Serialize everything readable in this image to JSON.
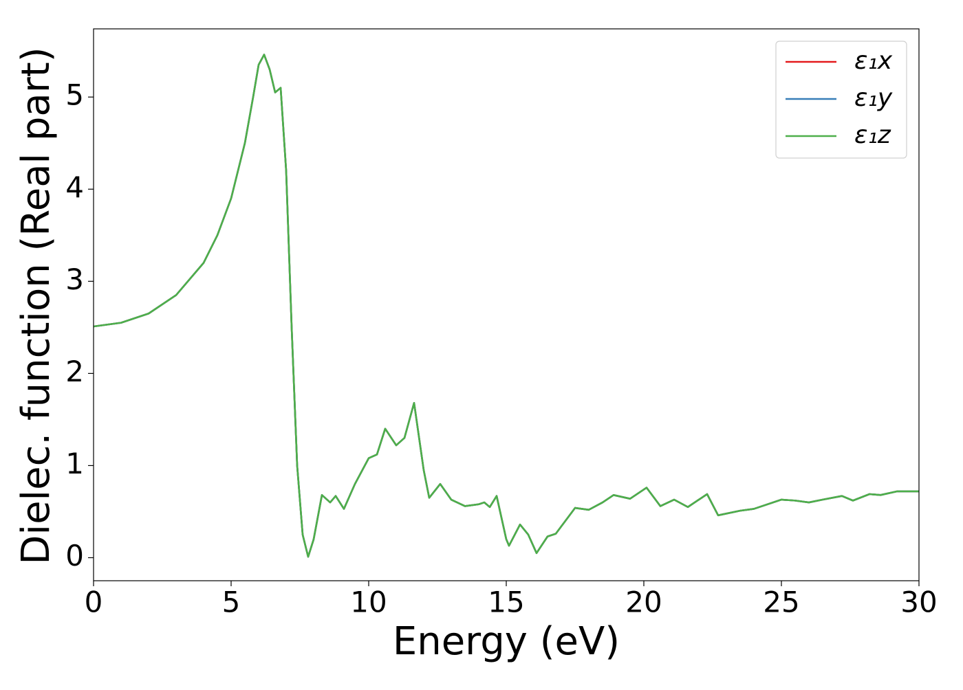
{
  "chart_data": {
    "type": "line",
    "x_label": "Energy (eV)",
    "y_label": "Dielec. function (Real part)",
    "x": [
      0,
      1,
      2,
      3,
      4,
      4.5,
      5,
      5.5,
      5.8,
      6.0,
      6.2,
      6.4,
      6.6,
      6.8,
      7.0,
      7.2,
      7.4,
      7.6,
      7.8,
      8.0,
      8.3,
      8.6,
      8.8,
      9.1,
      9.5,
      10.0,
      10.3,
      10.6,
      11.0,
      11.3,
      11.65,
      12.0,
      12.2,
      12.6,
      13.0,
      13.5,
      14.0,
      14.2,
      14.4,
      14.65,
      15.0,
      15.1,
      15.5,
      15.8,
      16.1,
      16.5,
      16.8,
      17.0,
      17.5,
      18.0,
      18.5,
      18.9,
      19.5,
      20.1,
      20.6,
      21.1,
      21.6,
      22.3,
      22.7,
      23.5,
      24.0,
      25.0,
      25.5,
      26.0,
      26.5,
      27.2,
      27.6,
      28.2,
      28.6,
      29.2,
      30.0
    ],
    "series": [
      {
        "name": "ε₁x",
        "color": "#e41a1c",
        "values": [
          2.51,
          2.55,
          2.65,
          2.85,
          3.2,
          3.5,
          3.9,
          4.5,
          5.0,
          5.35,
          5.46,
          5.3,
          5.05,
          5.1,
          4.2,
          2.5,
          1.0,
          0.25,
          0.01,
          0.2,
          0.68,
          0.6,
          0.67,
          0.53,
          0.8,
          1.08,
          1.12,
          1.4,
          1.22,
          1.3,
          1.68,
          0.95,
          0.65,
          0.8,
          0.63,
          0.56,
          0.58,
          0.6,
          0.55,
          0.67,
          0.2,
          0.13,
          0.36,
          0.25,
          0.05,
          0.23,
          0.26,
          0.34,
          0.54,
          0.52,
          0.6,
          0.68,
          0.64,
          0.76,
          0.56,
          0.63,
          0.55,
          0.69,
          0.46,
          0.51,
          0.53,
          0.63,
          0.62,
          0.6,
          0.63,
          0.67,
          0.62,
          0.69,
          0.68,
          0.72,
          0.72
        ]
      },
      {
        "name": "ε₁y",
        "color": "#377eb8",
        "values": [
          2.51,
          2.55,
          2.65,
          2.85,
          3.2,
          3.5,
          3.9,
          4.5,
          5.0,
          5.35,
          5.46,
          5.3,
          5.05,
          5.1,
          4.2,
          2.5,
          1.0,
          0.25,
          0.01,
          0.2,
          0.68,
          0.6,
          0.67,
          0.53,
          0.8,
          1.08,
          1.12,
          1.4,
          1.22,
          1.3,
          1.68,
          0.95,
          0.65,
          0.8,
          0.63,
          0.56,
          0.58,
          0.6,
          0.55,
          0.67,
          0.2,
          0.13,
          0.36,
          0.25,
          0.05,
          0.23,
          0.26,
          0.34,
          0.54,
          0.52,
          0.6,
          0.68,
          0.64,
          0.76,
          0.56,
          0.63,
          0.55,
          0.69,
          0.46,
          0.51,
          0.53,
          0.63,
          0.62,
          0.6,
          0.63,
          0.67,
          0.62,
          0.69,
          0.68,
          0.72,
          0.72
        ]
      },
      {
        "name": "ε₁z",
        "color": "#4daf4a",
        "values": [
          2.51,
          2.55,
          2.65,
          2.85,
          3.2,
          3.5,
          3.9,
          4.5,
          5.0,
          5.35,
          5.46,
          5.3,
          5.05,
          5.1,
          4.2,
          2.5,
          1.0,
          0.25,
          0.01,
          0.2,
          0.68,
          0.6,
          0.67,
          0.53,
          0.8,
          1.08,
          1.12,
          1.4,
          1.22,
          1.3,
          1.68,
          0.95,
          0.65,
          0.8,
          0.63,
          0.56,
          0.58,
          0.6,
          0.55,
          0.67,
          0.2,
          0.13,
          0.36,
          0.25,
          0.05,
          0.23,
          0.26,
          0.34,
          0.54,
          0.52,
          0.6,
          0.68,
          0.64,
          0.76,
          0.56,
          0.63,
          0.55,
          0.69,
          0.46,
          0.51,
          0.53,
          0.63,
          0.62,
          0.6,
          0.63,
          0.67,
          0.62,
          0.69,
          0.68,
          0.72,
          0.72
        ]
      }
    ],
    "xlim": [
      0,
      30
    ],
    "xticks": [
      0,
      5,
      10,
      15,
      20,
      25,
      30
    ],
    "ylim": [
      -0.25,
      5.74
    ],
    "yticks": [
      0,
      1,
      2,
      3,
      4,
      5
    ],
    "grid": false,
    "legend": "upper right"
  }
}
